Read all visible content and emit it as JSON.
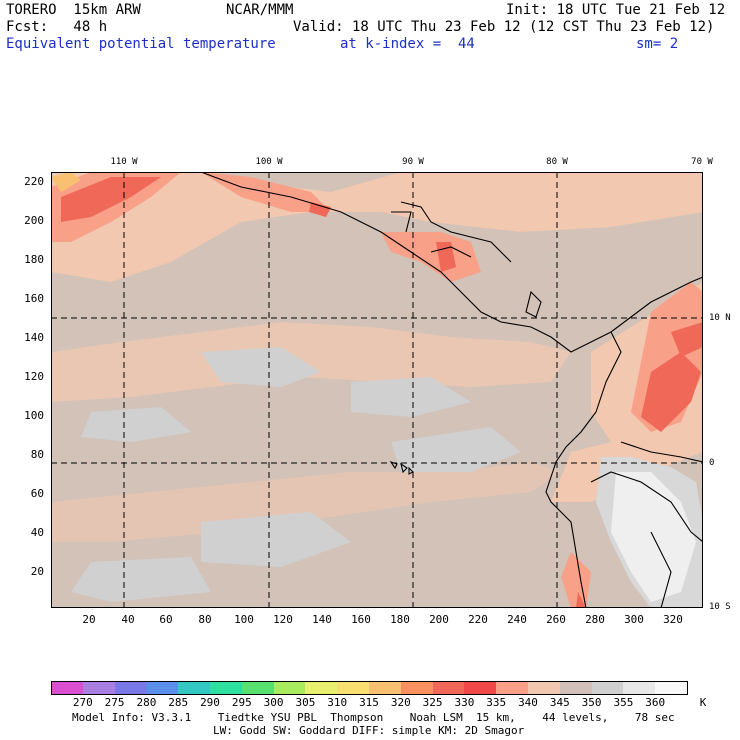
{
  "header": {
    "model": "TORERO  15km ARW",
    "org": "NCAR/MMM",
    "init": "Init: 18 UTC Tue 21 Feb 12",
    "fcst": "Fcst:   48 h",
    "valid": "Valid: 18 UTC Thu 23 Feb 12 (12 CST Thu 23 Feb 12)",
    "field": "Equivalent potential temperature",
    "level": "at k-index =  44",
    "smooth": "sm= 2"
  },
  "map": {
    "lon_labels": [
      "110 W",
      "100 W",
      "90 W",
      "80 W",
      "70 W"
    ],
    "lat_labels": [
      "10 N",
      "0",
      "10 S"
    ],
    "y_ticks": [
      "220",
      "200",
      "180",
      "160",
      "140",
      "120",
      "100",
      "80",
      "60",
      "40",
      "20"
    ],
    "x_ticks": [
      "20",
      "40",
      "60",
      "80",
      "100",
      "120",
      "140",
      "160",
      "180",
      "200",
      "220",
      "240",
      "260",
      "280",
      "300",
      "320"
    ]
  },
  "colorbar": {
    "labels": [
      "270",
      "275",
      "280",
      "285",
      "290",
      "295",
      "300",
      "305",
      "310",
      "315",
      "320",
      "325",
      "330",
      "335",
      "340",
      "345",
      "350",
      "355",
      "360"
    ],
    "unit": "K",
    "colors": [
      "#d84fd0",
      "#a87ee0",
      "#7a78e6",
      "#5a8ee8",
      "#30c8c0",
      "#2ee0a0",
      "#56e070",
      "#a8ea60",
      "#e8f070",
      "#f8e070",
      "#f8c070",
      "#f89060",
      "#f06858",
      "#f04848",
      "#f8a088",
      "#f0c8b0",
      "#d0c0b8",
      "#d0d0d0",
      "#e8e8e8",
      "#f8f8f8"
    ]
  },
  "footer": {
    "line1": "Model Info: V3.3.1    Tiedtke YSU PBL  Thompson    Noah LSM  15 km,    44 levels,    78 sec",
    "line2": "LW: Godd SW: Goddard DIFF: simple KM: 2D Smagor"
  }
}
